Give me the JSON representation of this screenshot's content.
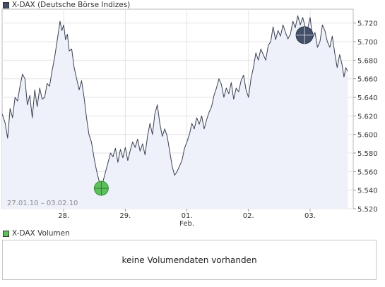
{
  "chart_data": {
    "type": "line",
    "legend": "X-DAX (Deutsche Börse Indizes)",
    "legend_color": "#444e66",
    "date_range": "27.01.10 – 03.02.10",
    "x_ticks": [
      {
        "label": "28.",
        "sub": "",
        "x": 1
      },
      {
        "label": "29.",
        "sub": "",
        "x": 2
      },
      {
        "label": "01.",
        "sub": "Feb.",
        "x": 3
      },
      {
        "label": "02.",
        "sub": "",
        "x": 4
      },
      {
        "label": "03.",
        "sub": "",
        "x": 5
      }
    ],
    "xlim": [
      0,
      5.7
    ],
    "ylim": [
      5520,
      5735
    ],
    "y_ticks": [
      "5.520",
      "5.540",
      "5.560",
      "5.580",
      "5.600",
      "5.620",
      "5.640",
      "5.660",
      "5.680",
      "5.700",
      "5.720"
    ],
    "y_tick_values": [
      5520,
      5540,
      5560,
      5580,
      5600,
      5620,
      5640,
      5660,
      5680,
      5700,
      5720
    ],
    "grid": true,
    "line_color": "#3a4150",
    "fill_color": "#eef0fa",
    "series": [
      {
        "values": [
          [
            0.0,
            5622
          ],
          [
            0.05,
            5612
          ],
          [
            0.09,
            5596
          ],
          [
            0.13,
            5628
          ],
          [
            0.17,
            5618
          ],
          [
            0.21,
            5640
          ],
          [
            0.25,
            5636
          ],
          [
            0.29,
            5652
          ],
          [
            0.33,
            5665
          ],
          [
            0.37,
            5660
          ],
          [
            0.41,
            5632
          ],
          [
            0.45,
            5642
          ],
          [
            0.49,
            5618
          ],
          [
            0.53,
            5648
          ],
          [
            0.57,
            5630
          ],
          [
            0.61,
            5650
          ],
          [
            0.65,
            5638
          ],
          [
            0.69,
            5640
          ],
          [
            0.73,
            5655
          ],
          [
            0.77,
            5652
          ],
          [
            0.81,
            5668
          ],
          [
            0.85,
            5682
          ],
          [
            0.88,
            5695
          ],
          [
            0.91,
            5708
          ],
          [
            0.94,
            5722
          ],
          [
            0.97,
            5712
          ],
          [
            1.0,
            5718
          ],
          [
            1.03,
            5702
          ],
          [
            1.06,
            5708
          ],
          [
            1.09,
            5690
          ],
          [
            1.13,
            5692
          ],
          [
            1.17,
            5672
          ],
          [
            1.21,
            5660
          ],
          [
            1.25,
            5648
          ],
          [
            1.29,
            5658
          ],
          [
            1.33,
            5640
          ],
          [
            1.37,
            5618
          ],
          [
            1.41,
            5600
          ],
          [
            1.45,
            5592
          ],
          [
            1.49,
            5576
          ],
          [
            1.53,
            5562
          ],
          [
            1.57,
            5551
          ],
          [
            1.61,
            5544
          ],
          [
            1.64,
            5550
          ],
          [
            1.68,
            5560
          ],
          [
            1.72,
            5570
          ],
          [
            1.76,
            5580
          ],
          [
            1.8,
            5576
          ],
          [
            1.84,
            5585
          ],
          [
            1.88,
            5570
          ],
          [
            1.92,
            5584
          ],
          [
            1.96,
            5575
          ],
          [
            2.0,
            5586
          ],
          [
            2.04,
            5572
          ],
          [
            2.08,
            5583
          ],
          [
            2.12,
            5592
          ],
          [
            2.16,
            5586
          ],
          [
            2.2,
            5595
          ],
          [
            2.24,
            5582
          ],
          [
            2.28,
            5590
          ],
          [
            2.32,
            5578
          ],
          [
            2.36,
            5598
          ],
          [
            2.4,
            5612
          ],
          [
            2.44,
            5600
          ],
          [
            2.48,
            5622
          ],
          [
            2.52,
            5632
          ],
          [
            2.56,
            5612
          ],
          [
            2.6,
            5598
          ],
          [
            2.64,
            5606
          ],
          [
            2.68,
            5598
          ],
          [
            2.72,
            5582
          ],
          [
            2.76,
            5566
          ],
          [
            2.8,
            5556
          ],
          [
            2.84,
            5560
          ],
          [
            2.88,
            5566
          ],
          [
            2.92,
            5572
          ],
          [
            2.96,
            5585
          ],
          [
            3.0,
            5592
          ],
          [
            3.04,
            5600
          ],
          [
            3.08,
            5612
          ],
          [
            3.12,
            5606
          ],
          [
            3.16,
            5618
          ],
          [
            3.2,
            5611
          ],
          [
            3.24,
            5620
          ],
          [
            3.28,
            5606
          ],
          [
            3.32,
            5616
          ],
          [
            3.36,
            5624
          ],
          [
            3.4,
            5630
          ],
          [
            3.44,
            5642
          ],
          [
            3.48,
            5650
          ],
          [
            3.52,
            5660
          ],
          [
            3.56,
            5654
          ],
          [
            3.6,
            5640
          ],
          [
            3.64,
            5650
          ],
          [
            3.68,
            5644
          ],
          [
            3.72,
            5656
          ],
          [
            3.76,
            5638
          ],
          [
            3.8,
            5650
          ],
          [
            3.84,
            5646
          ],
          [
            3.88,
            5658
          ],
          [
            3.92,
            5664
          ],
          [
            3.96,
            5648
          ],
          [
            4.0,
            5640
          ],
          [
            4.04,
            5660
          ],
          [
            4.08,
            5672
          ],
          [
            4.12,
            5688
          ],
          [
            4.16,
            5680
          ],
          [
            4.2,
            5692
          ],
          [
            4.24,
            5686
          ],
          [
            4.28,
            5680
          ],
          [
            4.32,
            5696
          ],
          [
            4.36,
            5700
          ],
          [
            4.4,
            5716
          ],
          [
            4.44,
            5702
          ],
          [
            4.48,
            5712
          ],
          [
            4.52,
            5706
          ],
          [
            4.56,
            5718
          ],
          [
            4.6,
            5710
          ],
          [
            4.64,
            5703
          ],
          [
            4.68,
            5708
          ],
          [
            4.72,
            5722
          ],
          [
            4.76,
            5715
          ],
          [
            4.8,
            5728
          ],
          [
            4.84,
            5718
          ],
          [
            4.88,
            5726
          ],
          [
            4.92,
            5716
          ],
          [
            4.96,
            5714
          ],
          [
            5.0,
            5726
          ],
          [
            5.04,
            5704
          ],
          [
            5.08,
            5710
          ],
          [
            5.12,
            5694
          ],
          [
            5.16,
            5700
          ],
          [
            5.2,
            5718
          ],
          [
            5.24,
            5712
          ],
          [
            5.28,
            5700
          ],
          [
            5.32,
            5694
          ],
          [
            5.36,
            5706
          ],
          [
            5.4,
            5688
          ],
          [
            5.44,
            5672
          ],
          [
            5.48,
            5686
          ],
          [
            5.52,
            5675
          ],
          [
            5.55,
            5662
          ],
          [
            5.58,
            5672
          ],
          [
            5.61,
            5668
          ]
        ]
      }
    ],
    "markers": [
      {
        "kind": "low",
        "x": 1.61,
        "y": 5542,
        "color": "#5cc05c"
      },
      {
        "kind": "high",
        "x": 4.91,
        "y": 5707,
        "color": "#44506a"
      }
    ]
  },
  "volume": {
    "legend": "X-DAX Volumen",
    "legend_color": "#5cc05c",
    "message": "keine Volumendaten vorhanden"
  }
}
